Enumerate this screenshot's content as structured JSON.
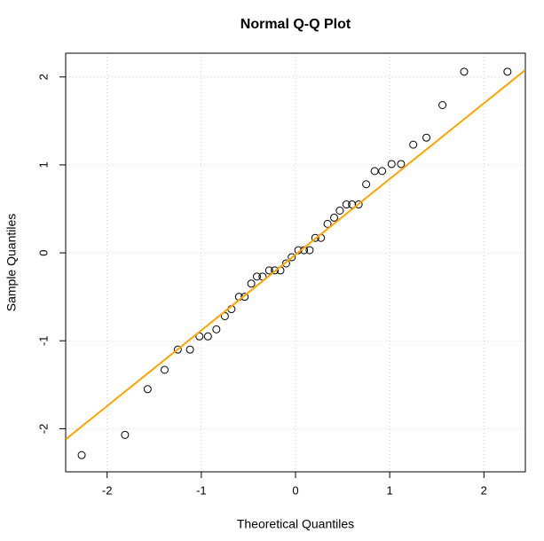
{
  "chart_data": {
    "type": "scatter",
    "title": "Normal Q-Q Plot",
    "x_label": "Theoretical Quantiles",
    "y_label": "Sample Quantiles",
    "x": [
      -2.27,
      -1.81,
      -1.57,
      -1.39,
      -1.25,
      -1.12,
      -1.02,
      -0.93,
      -0.84,
      -0.75,
      -0.68,
      -0.6,
      -0.54,
      -0.47,
      -0.41,
      -0.35,
      -0.28,
      -0.22,
      -0.16,
      -0.1,
      -0.04,
      0.03,
      0.09,
      0.15,
      0.21,
      0.27,
      0.34,
      0.41,
      0.47,
      0.54,
      0.6,
      0.67,
      0.75,
      0.84,
      0.92,
      1.02,
      1.12,
      1.25,
      1.39,
      1.56,
      1.79,
      2.25
    ],
    "values": [
      -2.3,
      -2.07,
      -1.55,
      -1.33,
      -1.1,
      -1.1,
      -0.95,
      -0.95,
      -0.87,
      -0.72,
      -0.64,
      -0.5,
      -0.5,
      -0.35,
      -0.27,
      -0.27,
      -0.2,
      -0.2,
      -0.2,
      -0.12,
      -0.05,
      0.03,
      0.03,
      0.03,
      0.17,
      0.17,
      0.33,
      0.4,
      0.48,
      0.55,
      0.55,
      0.55,
      0.78,
      0.93,
      0.93,
      1.01,
      1.01,
      1.23,
      1.31,
      1.68,
      2.06,
      2.06
    ],
    "color": "#000000",
    "reference_line": {
      "x": [
        -2.44,
        2.44
      ],
      "y": [
        -2.12,
        2.08
      ],
      "color": "#ffa500"
    },
    "xlim": [
      -2.44,
      2.44
    ],
    "ylim": [
      -2.49,
      2.27
    ],
    "xticks": [
      -2,
      -1,
      0,
      1,
      2
    ],
    "yticks": [
      -2,
      -1,
      0,
      1,
      2
    ],
    "grid": true
  }
}
